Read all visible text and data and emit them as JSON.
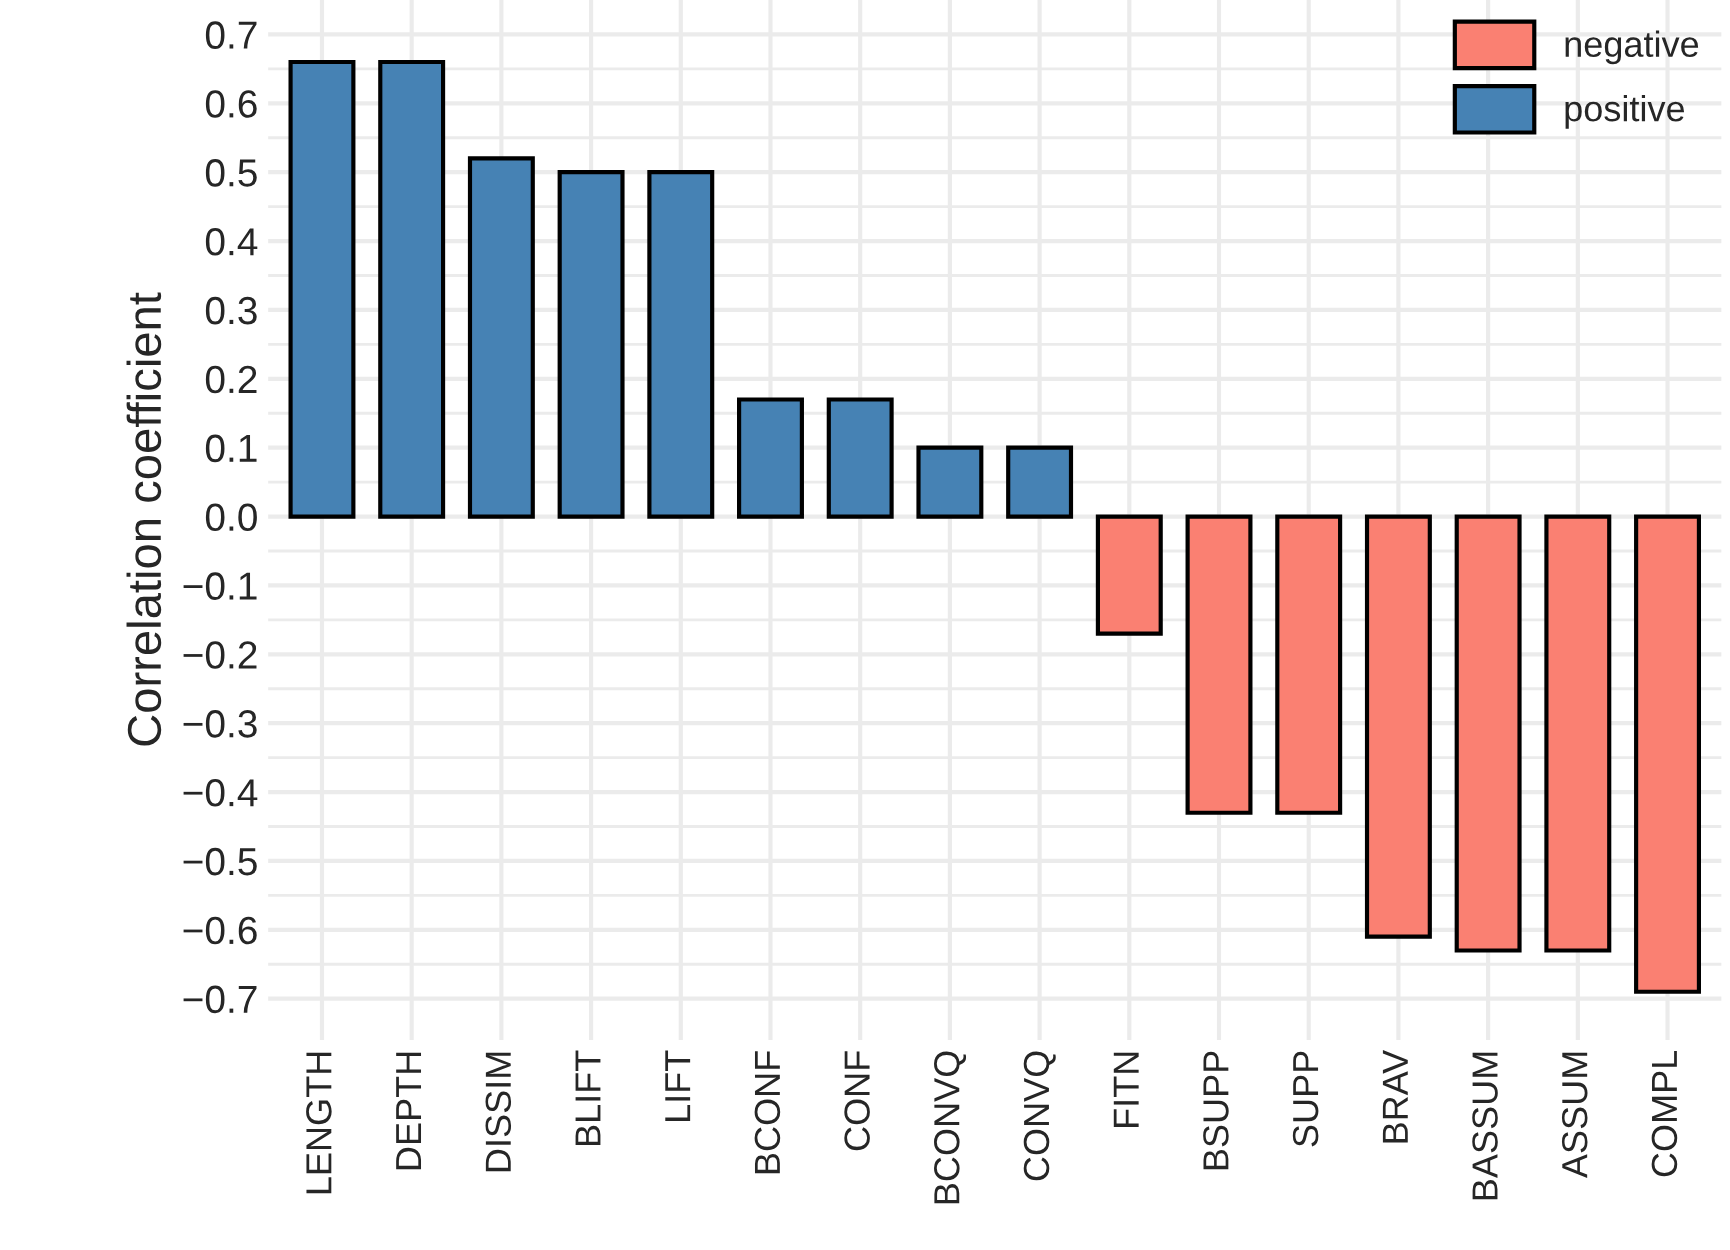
{
  "chart_data": {
    "type": "bar",
    "ylabel": "Correlation coefficient",
    "categories": [
      "LENGTH",
      "DEPTH",
      "DISSIM",
      "BLIFT",
      "LIFT",
      "BCONF",
      "CONF",
      "BCONVQ",
      "CONVQ",
      "FITN",
      "BSUPP",
      "SUPP",
      "BRAV",
      "BASSUM",
      "ASSUM",
      "COMPL"
    ],
    "series": [
      {
        "name": "negative",
        "color": "#fa8072",
        "values": [
          null,
          null,
          null,
          null,
          null,
          null,
          null,
          null,
          null,
          -0.17,
          -0.43,
          -0.43,
          -0.61,
          -0.63,
          -0.63,
          -0.69
        ]
      },
      {
        "name": "positive",
        "color": "#4682b4",
        "values": [
          0.66,
          0.66,
          0.52,
          0.5,
          0.5,
          0.17,
          0.17,
          0.1,
          0.1,
          null,
          null,
          null,
          null,
          null,
          null,
          null
        ]
      }
    ],
    "ylim": [
      -0.76,
      0.75
    ],
    "yticks": [
      {
        "value": -0.7,
        "label": "−0.7"
      },
      {
        "value": -0.6,
        "label": "−0.6"
      },
      {
        "value": -0.5,
        "label": "−0.5"
      },
      {
        "value": -0.4,
        "label": "−0.4"
      },
      {
        "value": -0.3,
        "label": "−0.3"
      },
      {
        "value": -0.2,
        "label": "−0.2"
      },
      {
        "value": -0.1,
        "label": "−0.1"
      },
      {
        "value": 0,
        "label": "0.0"
      },
      {
        "value": 0.1,
        "label": "0.1"
      },
      {
        "value": 0.2,
        "label": "0.2"
      },
      {
        "value": 0.3,
        "label": "0.3"
      },
      {
        "value": 0.4,
        "label": "0.4"
      },
      {
        "value": 0.5,
        "label": "0.5"
      },
      {
        "value": 0.6,
        "label": "0.6"
      },
      {
        "value": 0.7,
        "label": "0.7"
      }
    ],
    "grid": true,
    "legend": "top right"
  }
}
